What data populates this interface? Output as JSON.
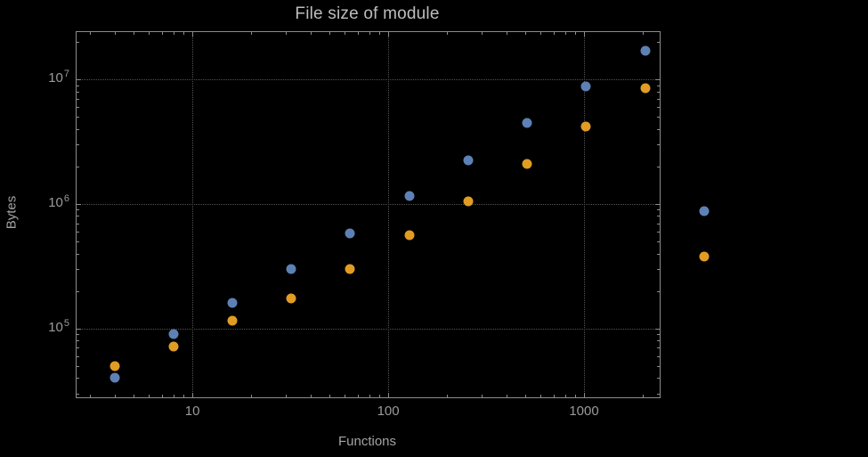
{
  "chart_data": {
    "type": "scatter",
    "title": "File size of module",
    "xlabel": "Functions",
    "ylabel": "Bytes",
    "x_scale": "log",
    "y_scale": "log",
    "xlim": [
      2.56,
      2434
    ],
    "ylim": [
      28000,
      24000000
    ],
    "grid": "dotted-major-both-axes",
    "x_axis": {
      "major_ticks": [
        {
          "v": 10,
          "label": "10"
        },
        {
          "v": 100,
          "label": "100"
        },
        {
          "v": 1000,
          "label": "1000"
        }
      ],
      "minor_ticks": [
        3,
        4,
        5,
        6,
        7,
        8,
        9,
        20,
        30,
        40,
        50,
        60,
        70,
        80,
        90,
        200,
        300,
        400,
        500,
        600,
        700,
        800,
        900,
        2000
      ]
    },
    "y_axis": {
      "major_ticks": [
        {
          "v": 100000,
          "base": "10",
          "exp": "5"
        },
        {
          "v": 1000000,
          "base": "10",
          "exp": "6"
        },
        {
          "v": 10000000,
          "base": "10",
          "exp": "7"
        }
      ],
      "minor_ticks": [
        30000,
        40000,
        50000,
        60000,
        70000,
        80000,
        90000,
        200000,
        300000,
        400000,
        500000,
        600000,
        700000,
        800000,
        900000,
        2000000,
        3000000,
        4000000,
        5000000,
        6000000,
        7000000,
        8000000,
        9000000,
        20000000
      ]
    },
    "series": [
      {
        "color": "#5e81b5",
        "points": [
          [
            4,
            40000
          ],
          [
            8,
            90000
          ],
          [
            16,
            160000
          ],
          [
            32,
            300000
          ],
          [
            64,
            580000
          ],
          [
            128,
            1150000
          ],
          [
            256,
            2250000
          ],
          [
            512,
            4500000
          ],
          [
            1024,
            8800000
          ],
          [
            2048,
            17000000
          ],
          [
            4096,
            880000
          ]
        ]
      },
      {
        "color": "#e19c24",
        "points": [
          [
            4,
            50000
          ],
          [
            8,
            72000
          ],
          [
            16,
            115000
          ],
          [
            32,
            175000
          ],
          [
            64,
            300000
          ],
          [
            128,
            560000
          ],
          [
            256,
            1050000
          ],
          [
            512,
            2100000
          ],
          [
            1024,
            4200000
          ],
          [
            2048,
            8500000
          ],
          [
            4096,
            380000
          ]
        ]
      }
    ],
    "colors": {
      "background": "#000000",
      "frame": "#8c8c8c",
      "grid": "#545454",
      "title_text": "#bdbdbd",
      "axis_label_text": "#a3a3a3",
      "tick_text": "#9a9a9a",
      "series_1": "#5e81b5",
      "series_2": "#e19c24"
    }
  }
}
